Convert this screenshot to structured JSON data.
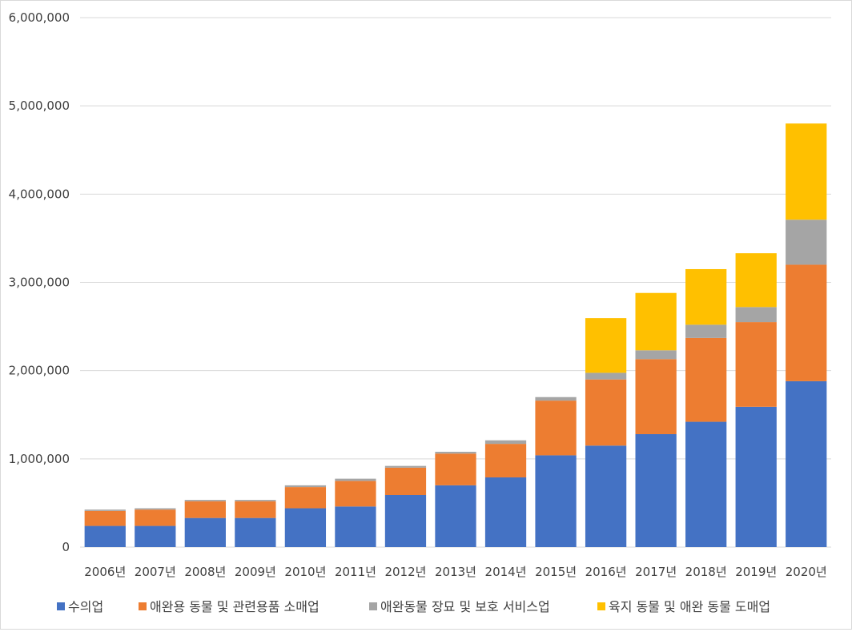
{
  "chart_data": {
    "type": "bar",
    "stacked": true,
    "categories": [
      "2006년",
      "2007년",
      "2008년",
      "2009년",
      "2010년",
      "2011년",
      "2012년",
      "2013년",
      "2014년",
      "2015년",
      "2016년",
      "2017년",
      "2018년",
      "2019년",
      "2020년"
    ],
    "series": [
      {
        "name": "수의업",
        "color": "#4472C4",
        "values": [
          240000,
          240000,
          330000,
          330000,
          440000,
          460000,
          590000,
          700000,
          790000,
          1040000,
          1150000,
          1280000,
          1420000,
          1590000,
          1880000
        ]
      },
      {
        "name": "애완용 동물 및 관련용품 소매업",
        "color": "#ED7D31",
        "values": [
          170000,
          185000,
          190000,
          190000,
          240000,
          290000,
          310000,
          360000,
          380000,
          620000,
          750000,
          850000,
          950000,
          960000,
          1320000
        ]
      },
      {
        "name": "애완동물 장묘 및 보호 서비스업",
        "color": "#A5A5A5",
        "values": [
          15000,
          15000,
          15000,
          15000,
          20000,
          25000,
          20000,
          20000,
          40000,
          40000,
          75000,
          100000,
          150000,
          170000,
          510000
        ]
      },
      {
        "name": "육지 동물 및 애완 동물 도매업",
        "color": "#FFC000",
        "values": [
          0,
          0,
          0,
          0,
          0,
          0,
          0,
          0,
          0,
          0,
          620000,
          650000,
          630000,
          610000,
          1090000
        ]
      }
    ],
    "ylim": [
      0,
      6000000
    ],
    "yticks": [
      0,
      1000000,
      2000000,
      3000000,
      4000000,
      5000000,
      6000000
    ],
    "ytick_labels": [
      "0",
      "1,000,000",
      "2,000,000",
      "3,000,000",
      "4,000,000",
      "5,000,000",
      "6,000,000"
    ],
    "grid": true,
    "legend_position": "bottom"
  }
}
